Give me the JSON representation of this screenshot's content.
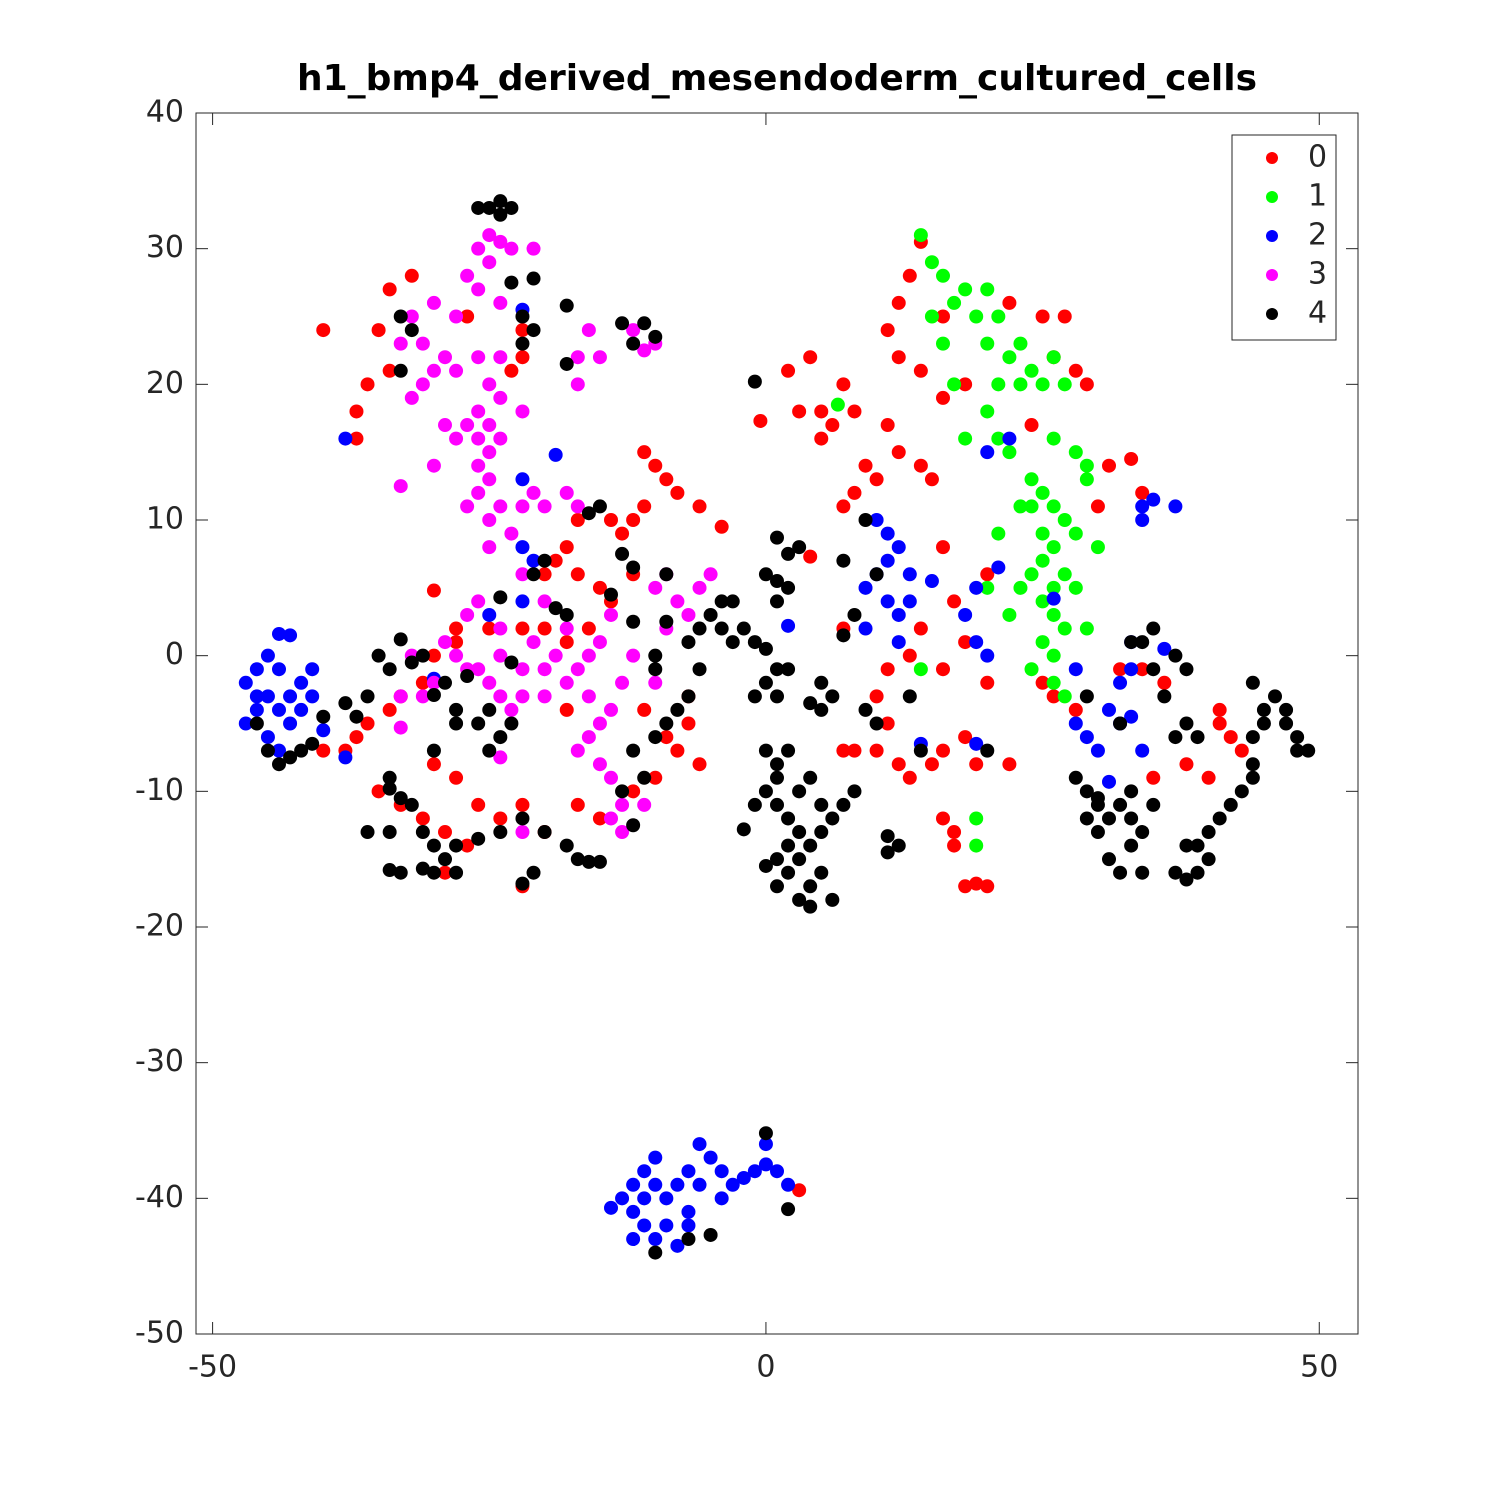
{
  "chart_data": {
    "type": "scatter",
    "title": "h1_bmp4_derived_mesendoderm_cultured_cells",
    "xlim": [
      -51.5,
      53.5
    ],
    "ylim": [
      -50,
      40
    ],
    "xticks": [
      -50,
      0,
      50
    ],
    "yticks": [
      -50,
      -40,
      -30,
      -20,
      -10,
      0,
      10,
      20,
      30,
      40
    ],
    "legend": "upper right",
    "series": [
      {
        "name": "0",
        "color": "#ff0000",
        "x": [
          14,
          13,
          12,
          16,
          22,
          25,
          27,
          28,
          29,
          26,
          11,
          12,
          14,
          4,
          2,
          3,
          5,
          6,
          8,
          7,
          -0.5,
          5,
          16,
          18,
          12,
          14,
          15,
          10,
          11,
          24,
          31,
          33,
          34,
          30,
          9,
          8,
          7,
          16,
          20,
          17,
          14,
          13,
          16,
          18,
          20,
          11,
          10,
          11,
          12,
          13,
          15,
          16,
          18,
          19,
          22,
          10,
          8,
          16,
          17,
          18,
          19,
          20,
          17,
          25,
          26,
          28,
          32,
          34,
          36,
          35,
          38,
          41,
          42,
          43,
          41,
          40,
          -34,
          -35,
          -36,
          -37,
          -37,
          -34,
          -40,
          -32,
          -27,
          -22,
          -22,
          -23,
          -14,
          -18,
          -19,
          -20,
          -17,
          -15,
          -17,
          -13,
          -12,
          -11,
          -11,
          -10,
          -9,
          -8,
          -6,
          -4,
          -12,
          -14,
          -16,
          -18,
          -20,
          -22,
          -25,
          -28,
          -30,
          -31,
          -33,
          -34,
          -36,
          -37,
          -38,
          -40,
          -35,
          -33,
          -31,
          -29,
          -27,
          -29,
          -30,
          -28,
          -26,
          -24,
          -22,
          -20,
          -17,
          -15,
          -12,
          -10,
          -9,
          -11,
          -7,
          -8,
          -6,
          -7,
          -18,
          -22,
          -30,
          -28,
          3,
          4,
          7,
          7
        ],
        "values": [
          30.5,
          28,
          26,
          25,
          26,
          25,
          25,
          21,
          20,
          22,
          24,
          22,
          21,
          22,
          21,
          18,
          18,
          17,
          18,
          20,
          17.3,
          16,
          19,
          20,
          15,
          14,
          13,
          13,
          17,
          17,
          14,
          14.5,
          12,
          11,
          14,
          12,
          11,
          8,
          6,
          4,
          2,
          0,
          -1,
          1,
          -2,
          -1,
          -3,
          -5,
          -8,
          -9,
          -8,
          -7,
          -6,
          -8,
          -8,
          -7,
          -7,
          -12,
          -14,
          -17,
          -16.8,
          -17,
          -13,
          -2,
          -3,
          -4,
          -1,
          -1,
          -2,
          -9,
          -8,
          -5,
          -6,
          -7,
          -4,
          -9,
          27,
          24,
          20,
          18,
          16,
          21,
          24,
          28,
          25,
          24,
          22,
          21,
          10,
          8,
          7,
          6,
          6,
          5,
          10,
          9,
          10,
          11,
          15,
          14,
          13,
          12,
          11,
          9.5,
          6,
          4,
          2,
          1,
          2,
          2,
          2,
          1,
          0,
          -2,
          -3,
          -4,
          -5,
          -6,
          -7,
          -7,
          -10,
          -11,
          -12,
          -13,
          -14,
          -16,
          -8,
          -9,
          -11,
          -12,
          -11,
          -13,
          -11,
          -12,
          -10,
          -9,
          -6,
          -4,
          -5,
          -7,
          -8,
          -3,
          -4,
          -17,
          4.8,
          2,
          -39.4,
          7.3,
          2,
          -7
        ]
      },
      {
        "name": "1",
        "color": "#00ff00",
        "x": [
          14,
          15,
          16,
          17,
          18,
          19,
          20,
          21,
          20,
          21,
          22,
          23,
          24,
          25,
          26,
          27,
          23,
          20,
          21,
          22,
          26,
          28,
          29,
          24,
          25,
          26,
          27,
          28,
          26,
          25,
          27,
          26,
          25,
          26,
          27,
          25,
          26,
          24,
          26,
          27,
          24,
          23,
          22,
          20,
          21,
          25,
          24,
          29,
          30,
          15,
          16,
          17,
          6.5,
          18,
          19,
          19,
          14,
          29,
          23,
          28
        ],
        "values": [
          31,
          29,
          28,
          26,
          27,
          25,
          27,
          25,
          23,
          20,
          22,
          23,
          21,
          20,
          22,
          20,
          20,
          18,
          16,
          15,
          16,
          15,
          14,
          13,
          12,
          11,
          10,
          9,
          8,
          7,
          6,
          5,
          4,
          3,
          2,
          1,
          0,
          -1,
          -2,
          -3,
          6,
          5,
          3,
          5,
          9,
          9,
          11,
          2,
          8,
          25,
          23,
          20,
          18.5,
          16,
          -12,
          -14,
          -1,
          13,
          11,
          5
        ]
      },
      {
        "name": "2",
        "color": "#0000ff",
        "x": [
          -44,
          -45,
          -46,
          -47,
          -45,
          -44,
          -43,
          -42,
          -46,
          -47,
          -43,
          -44,
          -45,
          -46,
          -43,
          -41,
          -41,
          -42,
          -44,
          -40,
          -38,
          -22,
          -19,
          -22,
          -22,
          -21,
          -22,
          -25,
          -30,
          -38,
          2,
          10,
          11,
          11,
          12,
          10,
          9,
          11,
          12,
          9,
          13,
          13,
          12,
          15,
          19,
          18,
          19,
          20,
          21,
          19,
          14,
          22,
          20,
          26,
          28,
          29,
          30,
          31,
          32,
          32,
          33,
          33,
          34,
          35,
          37,
          34,
          36,
          34,
          31,
          28,
          33,
          -10,
          -11,
          -12,
          -13,
          -12,
          -11,
          -10,
          -9,
          -8,
          -7,
          -6,
          -6,
          -5,
          -4,
          -3,
          -2,
          -1,
          0,
          0,
          1,
          2,
          -9,
          -10,
          -8,
          -7,
          -12,
          -14,
          -4,
          -7,
          -11
        ],
        "values": [
          1.6,
          0,
          -1,
          -2,
          -3,
          -4,
          -3,
          -2,
          -4,
          -5,
          1.5,
          -1,
          -6,
          -3,
          -5,
          -1,
          -3,
          -4,
          -7,
          -5.5,
          16,
          25.5,
          14.8,
          13,
          8,
          7,
          4,
          3,
          -1.7,
          -7.5,
          2.2,
          10,
          9,
          7,
          8,
          6,
          5,
          4,
          3,
          2,
          6,
          4,
          1,
          5.5,
          5,
          3,
          1,
          0,
          6.5,
          -6.5,
          -6.5,
          16,
          15,
          4.2,
          -5,
          -6,
          -7,
          -4,
          -5,
          -2,
          -1,
          1,
          11,
          11.5,
          11,
          10,
          0.5,
          -7,
          -9.3,
          -1,
          -4.5,
          -37,
          -38,
          -39,
          -40,
          -41,
          -40,
          -39,
          -40,
          -39,
          -38,
          -36,
          -39,
          -37,
          -38,
          -39,
          -38.5,
          -38,
          -36,
          -37.5,
          -38,
          -39,
          -42,
          -43,
          -43.5,
          -41,
          -43,
          -40.7,
          -40,
          -42,
          -42
        ]
      },
      {
        "name": "3",
        "color": "#ff00ff",
        "x": [
          -25,
          -24,
          -26,
          -23,
          -21,
          -25,
          -27,
          -26,
          -24,
          -28,
          -30,
          -32,
          -31,
          -29,
          -28,
          -26,
          -24,
          -25,
          -24,
          -26,
          -25,
          -24,
          -25,
          -26,
          -27,
          -28,
          -29,
          -30,
          -31,
          -30,
          -33,
          -32,
          -22,
          -26,
          -25,
          -26,
          -27,
          -25,
          -24,
          -22,
          -21,
          -20,
          -23,
          -25,
          -18,
          -17,
          -16,
          -17,
          -15,
          -17,
          -12,
          -10,
          -11,
          -33,
          -14,
          -15,
          -16,
          -17,
          -18,
          -16,
          -14,
          -13,
          -15,
          -16,
          -17,
          -15,
          -14,
          -13,
          -14,
          -20,
          -21,
          -22,
          -24,
          -26,
          -28,
          -29,
          -30,
          -31,
          -33,
          -32,
          -27,
          -25,
          -24,
          -23,
          -22,
          -20,
          -19,
          -18,
          -20,
          -22,
          -27,
          -26,
          -24,
          -10,
          -9,
          -8,
          -7,
          -6,
          -5,
          -9,
          -11,
          -13,
          -22,
          -24,
          -12,
          -10,
          -33
        ],
        "values": [
          31,
          30.5,
          30,
          30,
          30,
          29,
          28,
          27,
          26,
          25,
          26,
          25,
          23,
          22,
          21,
          22,
          22,
          20,
          19,
          18,
          17,
          16,
          15,
          16,
          17,
          16,
          17,
          14,
          20,
          21,
          23,
          19,
          18,
          14,
          13,
          12,
          11,
          10,
          11,
          11,
          12,
          11,
          9,
          8,
          12,
          11,
          24,
          22,
          22,
          20,
          24,
          23,
          22.5,
          12.5,
          3,
          1,
          0,
          -1,
          -2,
          -3,
          -4,
          -2,
          -5,
          -6,
          -7,
          -8,
          -9,
          -11,
          -12,
          -1,
          1,
          -1,
          0,
          -1,
          0,
          1,
          -2,
          -3,
          -3,
          0,
          -1,
          -2,
          -3,
          -4,
          -3,
          -3,
          0,
          2,
          4,
          6,
          3,
          4,
          2,
          5,
          6,
          4,
          3,
          5,
          6,
          2,
          -11,
          -13,
          -13,
          -7.5,
          0,
          -2,
          -5.3
        ]
      },
      {
        "name": "4",
        "color": "#000000",
        "x": [
          -25,
          -24,
          -23,
          -24,
          -26,
          -23,
          -21,
          -22,
          -21,
          -22,
          -18,
          -32,
          -33,
          -10,
          -11,
          -12,
          -13,
          -33,
          -18,
          -46,
          -45,
          -44,
          -43,
          -42,
          -41,
          -40,
          -38,
          -37,
          -36,
          -35,
          -34,
          -33,
          -32,
          -31,
          -34,
          -33,
          -32,
          -31,
          -30,
          -29,
          -28,
          -30,
          -31,
          -33,
          -34,
          -34,
          -36,
          -28,
          -26,
          -24,
          -22,
          -20,
          -18,
          -17,
          -16,
          -15,
          -21,
          -22,
          -30,
          -28,
          -27,
          -28,
          -25,
          -24,
          -25,
          -26,
          -12,
          -13,
          -11,
          -12,
          -10,
          -9,
          -8,
          -7,
          -6,
          -7,
          -6,
          -5,
          -4,
          -3,
          -4,
          -3,
          -2,
          -1,
          -20,
          -21,
          -19,
          -18,
          -15,
          -16,
          -13,
          -12,
          -9,
          -9,
          -10,
          -10,
          -12,
          -14,
          -23,
          -23,
          -24,
          -34,
          -29,
          -30,
          -1,
          1,
          2,
          3,
          2,
          1,
          0,
          1,
          0,
          1,
          2,
          0,
          1,
          -1,
          5,
          6,
          5,
          4,
          7,
          8,
          9,
          10,
          0,
          1,
          2,
          1,
          0,
          1,
          -1,
          2,
          3,
          4,
          3,
          2,
          1,
          0,
          2,
          1,
          3,
          4,
          5,
          3,
          4,
          5,
          6,
          7,
          8,
          5,
          -2,
          4,
          6,
          11,
          11,
          12,
          7,
          9,
          10,
          14,
          20,
          13,
          28,
          29,
          30,
          31,
          30,
          32,
          33,
          34,
          33,
          32,
          34,
          31,
          29,
          30,
          33,
          35,
          37,
          38,
          39,
          40,
          39,
          40,
          41,
          42,
          43,
          44,
          44,
          44,
          45,
          45,
          46,
          47,
          47,
          48,
          48,
          49,
          44,
          37,
          38,
          36,
          35,
          33,
          34,
          35,
          37,
          38,
          29,
          32,
          39,
          38,
          0,
          -7,
          -10,
          2,
          -5
        ],
        "values": [
          33,
          33.5,
          33,
          32.5,
          33,
          27.5,
          27.8,
          25,
          24,
          23,
          25.8,
          24,
          25,
          23.5,
          24.5,
          23,
          24.5,
          21,
          21.5,
          -5,
          -7,
          -8,
          -7.5,
          -7,
          -6.5,
          -4.5,
          -3.5,
          -4.5,
          -3,
          0,
          -1,
          1.2,
          -0.5,
          0,
          -9,
          -10.5,
          -11,
          -13,
          -14,
          -15,
          -16,
          -16,
          -15.7,
          -16,
          -15.8,
          -13,
          -13,
          -14,
          -13.5,
          -13,
          -12,
          -13,
          -14,
          -15,
          -15.2,
          -15.2,
          -16,
          -16.8,
          -7,
          -5,
          -1.5,
          -4,
          -7,
          -6,
          -4,
          -5,
          -12.5,
          -10,
          -9,
          -7,
          -6,
          -5,
          -4,
          -3,
          -1,
          1,
          2,
          3,
          4,
          4,
          2,
          1,
          2,
          1,
          7,
          6,
          3.5,
          3,
          11,
          10.5,
          7.5,
          6.5,
          6,
          2.5,
          0,
          -1,
          2.5,
          4.5,
          -5,
          -0.5,
          4.3,
          -9.8,
          -2,
          -2.9,
          20.2,
          8.7,
          7.5,
          8,
          5,
          5.5,
          6,
          4,
          0.5,
          -1,
          -1,
          -2,
          -3,
          -3,
          -2,
          -3,
          -4,
          -3.5,
          1.5,
          3,
          -4,
          -5,
          -7,
          -8,
          -7,
          -9,
          -10,
          -11,
          -11,
          -12,
          -10,
          -9,
          -13,
          -14,
          -15,
          -15.5,
          -16,
          -17,
          -18,
          -17,
          -16,
          -15,
          -14,
          -13,
          -12,
          -11,
          -10,
          -11,
          -12.8,
          -18.5,
          -18,
          -13.3,
          -14.5,
          -14,
          7,
          10,
          6,
          -7,
          -7,
          -3,
          -9,
          -10,
          -11,
          -12,
          -13,
          -11,
          -12,
          -13,
          -14,
          -16,
          -16,
          -15,
          -12,
          -10.5,
          -10,
          -11,
          -16,
          -16.5,
          -16,
          -15,
          -14,
          -13,
          -12,
          -11,
          -10,
          -9,
          -8,
          -6,
          -5,
          -4,
          -3,
          -4,
          -5,
          -6,
          -7,
          -7,
          -2,
          -6,
          -5,
          -3,
          -1,
          1,
          1,
          2,
          0,
          -1,
          -3,
          -5,
          -6,
          -14,
          -35.2,
          -43,
          -44,
          -40.8,
          -42.7
        ]
      }
    ]
  }
}
